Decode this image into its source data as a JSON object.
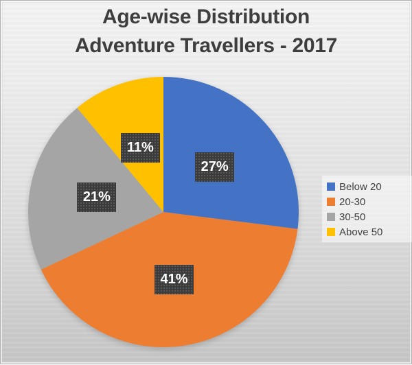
{
  "window": {
    "background_top": "#f4f4f4",
    "background_bottom": "#c6c6c6",
    "border_color": "#b0b0b0"
  },
  "title": {
    "line1": "Age-wise Distribution",
    "line2": "Adventure Travellers - 2017",
    "color": "#3e3e3e"
  },
  "chart_data": {
    "type": "pie",
    "title": "Age-wise Distribution Adventure Travellers - 2017",
    "categories": [
      "Below 20",
      "20-30",
      "30-50",
      "Above 50"
    ],
    "values": [
      27,
      41,
      21,
      11
    ],
    "unit": "percent",
    "data_labels": [
      "27%",
      "41%",
      "21%",
      "11%"
    ],
    "colors": [
      "#4472C4",
      "#ED7D31",
      "#A5A5A5",
      "#FFC000"
    ],
    "start_angle_deg": 0,
    "direction": "clockwise",
    "legend_position": "right",
    "label_style": {
      "background": "#3b3b3b",
      "text_color": "#ffffff"
    }
  }
}
